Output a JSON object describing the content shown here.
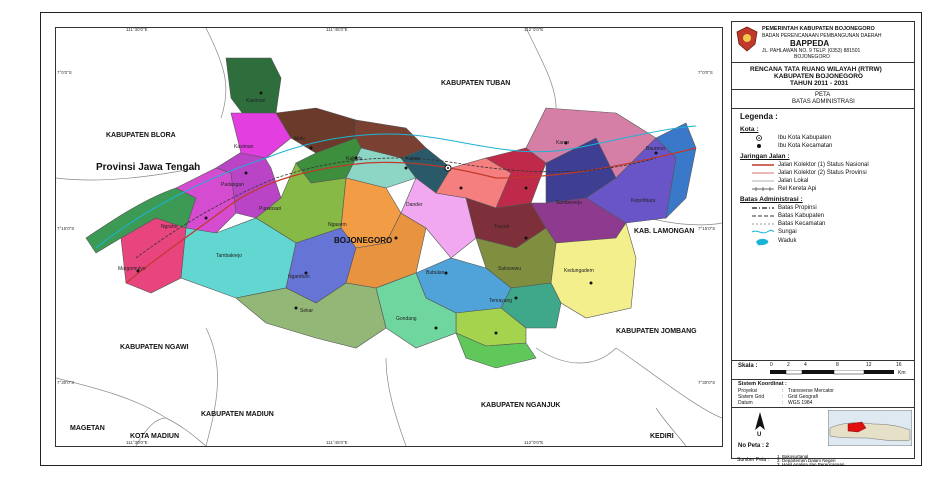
{
  "map": {
    "top_coords": [
      "111°30'0\"E",
      "111°45'0\"E",
      "112°0'0\"E"
    ],
    "bottom_coords": [
      "111°30'0\"E",
      "111°45'0\"E",
      "112°0'0\"E"
    ],
    "left_coords": [
      "7°0'0\"S",
      "7°15'0\"S",
      "7°30'0\"S"
    ],
    "right_coords": [
      "7°0'0\"S",
      "7°15'0\"S",
      "7°30'0\"S"
    ],
    "labels": {
      "tuban": "KABUPATEN TUBAN",
      "blora": "KABUPATEN BLORA",
      "jateng": "Provinsi Jawa Tengah",
      "lamongan": "KAB. LAMONGAN",
      "ngawi": "KABUPATEN NGAWI",
      "jombang": "KABUPATEN JOMBANG",
      "madiun": "KABUPATEN MADIUN",
      "nganjuk": "KABUPATEN NGANJUK",
      "magetan": "MAGETAN",
      "kota_madiun": "KOTA MADIUN",
      "kediri": "KEDIRI",
      "bojonegoro": "BOJONEGORO"
    },
    "districts": [
      "Kasiman",
      "Kasiman",
      "Malo",
      "Kalitidu",
      "Kapas",
      "Kanor",
      "Baureno",
      "Padangan",
      "Purwosari",
      "Ngasem",
      "Dander",
      "Sumberrejo",
      "Kepohbaru",
      "Ngraho",
      "Tambakrejo",
      "Trucuk",
      "Sukosewu",
      "Kedungadem",
      "Margomulyo",
      "Ngambon",
      "Bubulan",
      "Temayang",
      "Sekar",
      "Gondang"
    ]
  },
  "header": {
    "gov": "PEMERINTAH KABUPATEN BOJONEGORO",
    "agency": "BADAN PERENCANAAN PEMBANGUNAN DAERAH",
    "acronym": "BAPPEDA",
    "address": "JL. PAHLAWAN NO. 9 TELP. (0353) 881501",
    "city": "BOJONEGORO"
  },
  "title": {
    "line1": "RENCANA TATA RUANG WILAYAH (RTRW)",
    "line2": "KABUPATEN BOJONEGORO",
    "line3": "TAHUN 2011 - 2031"
  },
  "map_title": {
    "line1": "PETA",
    "line2": "BATAS ADMINISTRASI"
  },
  "legend": {
    "heading": "Legenda :",
    "kota_heading": "Kota :",
    "kota_items": [
      "Ibu Kota Kabupaten",
      "Ibu Kota Kecamatan"
    ],
    "jalan_heading": "Jaringan Jalan :",
    "jalan_items": [
      "Jalan Kolektor (1) Status Nasional",
      "Jalan Kolektor (2) Status Provinsi",
      "Jalan Lokal",
      "Rel Kereta Api"
    ],
    "batas_heading": "Batas Administrasi :",
    "batas_items": [
      "Batas Propinsi",
      "Batas Kabupaten",
      "Batas Kecamatan",
      "Sungai",
      "Waduk"
    ]
  },
  "scale": {
    "label": "Skala :",
    "ticks": [
      "0",
      "2",
      "4",
      "8",
      "12",
      "16"
    ],
    "unit": "Km"
  },
  "coord_system": {
    "heading": "Sistem Koordinat :",
    "rows": [
      {
        "key": "Proyeksi",
        "sep": ":",
        "value": "Transverse Mercator"
      },
      {
        "key": "Sistem Grid",
        "sep": ":",
        "value": "Grid Geografi"
      },
      {
        "key": "Datum",
        "sep": ":",
        "value": "WGS 1984"
      }
    ]
  },
  "north": "U",
  "map_no": "No Peta : 2",
  "sources": {
    "label": "Sumber Peta :",
    "items": [
      "1. Bakosurtanal",
      "2. Departemen Dalam Negeri",
      "3. Hasil Analisa dan Perencanaan"
    ]
  },
  "colors": {
    "legend_red": "#c0392b",
    "legend_blue": "#1ab3d6",
    "inset_highlight": "#e01010"
  }
}
